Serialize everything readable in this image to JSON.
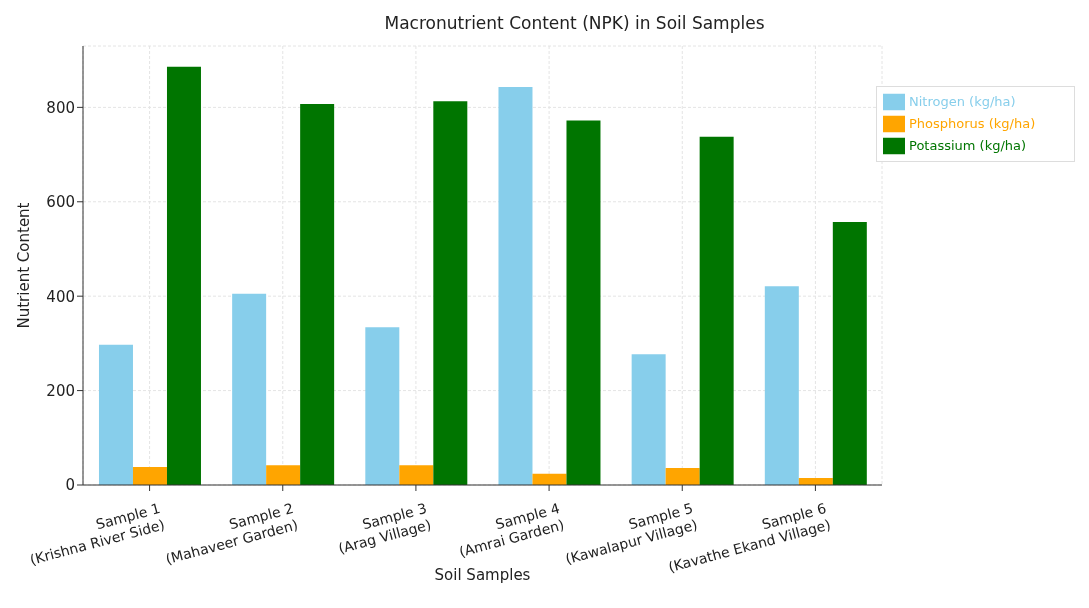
{
  "chart_data": {
    "type": "bar",
    "title": "Macronutrient Content (NPK) in Soil Samples",
    "xlabel": "Soil Samples",
    "ylabel": "Nutrient Content",
    "categories": [
      "Sample 1\n(Krishna River Side)",
      "Sample 2\n(Mahaveer Garden)",
      "Sample 3\n(Arag Village)",
      "Sample 4\n(Amrai Garden)",
      "Sample 5\n(Kawalapur Village)",
      "Sample 6\n(Kavathe Ekand Village)"
    ],
    "series": [
      {
        "name": "Nitrogen (kg/ha)",
        "color": "#87ceeb",
        "values": [
          297,
          405,
          334,
          843,
          277,
          421
        ]
      },
      {
        "name": "Phosphorus (kg/ha)",
        "color": "#ffa500",
        "values": [
          38,
          42,
          42,
          24,
          36,
          15
        ]
      },
      {
        "name": "Potassium (kg/ha)",
        "color": "#007500",
        "values": [
          886,
          807,
          813,
          772,
          738,
          557
        ]
      }
    ],
    "ylim": [
      0,
      930
    ],
    "yticks": [
      0,
      200,
      400,
      600,
      800
    ],
    "grid": true,
    "legend": "top right"
  }
}
